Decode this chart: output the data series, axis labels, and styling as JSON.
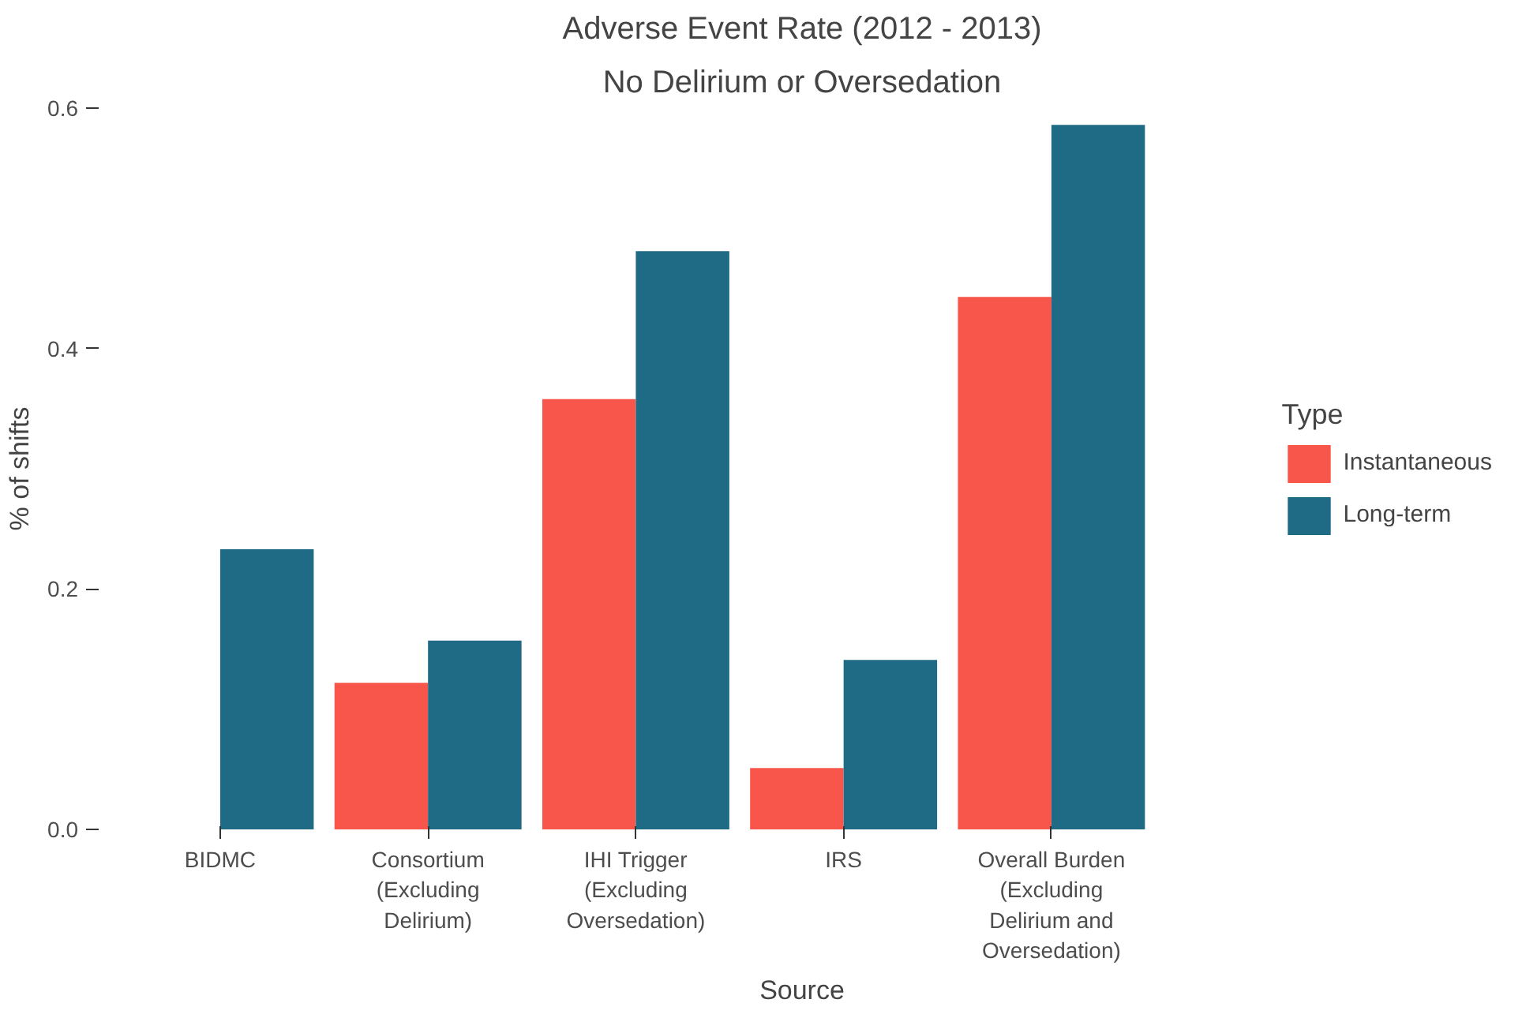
{
  "chart_data": {
    "type": "bar",
    "title": "Adverse Event Rate (2012 - 2013)",
    "subtitle": "No Delirium or Oversedation",
    "xlabel": "Source",
    "ylabel": "% of shifts",
    "legend_title": "Type",
    "legend": "right",
    "categories": [
      "BIDMC",
      "Consortium\n(Excluding\nDelirium)",
      "IHI Trigger\n(Excluding\nOversedation)",
      "IRS",
      "Overall Burden\n(Excluding\nDelirium and\nOversedation)"
    ],
    "series": [
      {
        "name": "Instantaneous",
        "color": "#f8564a",
        "values": [
          null,
          0.122,
          0.358,
          0.051,
          0.443
        ]
      },
      {
        "name": "Long-term",
        "color": "#1f6a85",
        "values": [
          0.233,
          0.157,
          0.481,
          0.141,
          0.586
        ]
      }
    ],
    "ylim": [
      0,
      0.6
    ],
    "yticks": [
      {
        "value": 0,
        "label": "0.0"
      },
      {
        "value": 0.2,
        "label": "0.2"
      },
      {
        "value": 0.4,
        "label": "0.4"
      },
      {
        "value": 0.6,
        "label": "0.6"
      }
    ],
    "grid": false
  }
}
